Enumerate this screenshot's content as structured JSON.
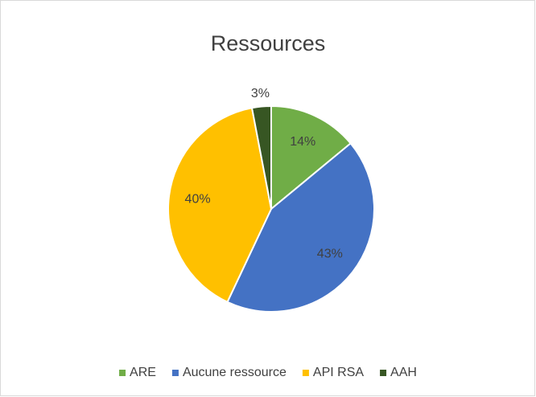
{
  "chart_data": {
    "type": "pie",
    "title": "Ressources",
    "categories": [
      "ARE",
      "Aucune ressource",
      "API RSA",
      "AAH"
    ],
    "values": [
      14,
      43,
      40,
      3
    ],
    "value_labels": [
      "14%",
      "43%",
      "40%",
      "3%"
    ],
    "colors": [
      "#70ad47",
      "#4472c4",
      "#ffc000",
      "#375623"
    ],
    "legend": "bottom"
  }
}
